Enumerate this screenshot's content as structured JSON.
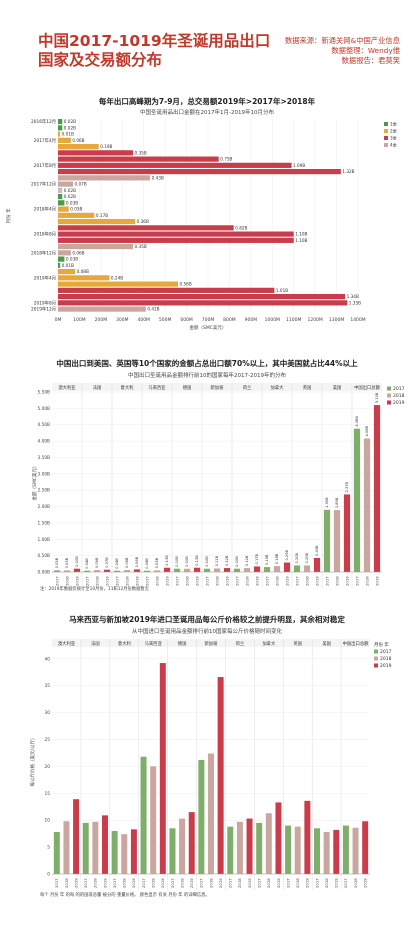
{
  "page": {
    "title": "中国2017-1019年圣诞用品出口国家及交易额分布",
    "meta": [
      "数据来源：新通关网&中国产业信息",
      "数据整理：Wendy维",
      "数据报告：君莫笑"
    ]
  },
  "colors": {
    "y2017": "#7fae6a",
    "y2018": "#c9a79f",
    "y2019": "#c93c4c",
    "aug": "#e6a83a",
    "jan": "#4a9a4a",
    "dec": "#c0c0c0",
    "title": "#c0392b"
  },
  "chart_data": [
    {
      "type": "bar",
      "orientation": "horizontal",
      "title": "每年出口高峰期为7-9月，总交易额2019年>2017年>2018年",
      "subtitle": "中国圣诞用品出口金额在2017年1月-2019年10月分布",
      "xlabel": "金额（SMC美元）",
      "ylabel": "月份 年",
      "xlim": [
        0,
        1400
      ],
      "xticks": [
        "0M",
        "100M",
        "200M",
        "300M",
        "400M",
        "500M",
        "600M",
        "700M",
        "800M",
        "900M",
        "1000M",
        "1100M",
        "1200M",
        "1300M",
        "1400M"
      ],
      "legend": [
        "1季",
        "2季",
        "3季",
        "4季"
      ],
      "legend_position": "top-right",
      "categories": [
        "2016年12月",
        "2017年4月",
        "2017年8月",
        "2017年12月",
        "2018年4月",
        "2018年8月",
        "2018年12月",
        "2019年4月",
        "2019年8月",
        "2019年12月"
      ],
      "bars": [
        {
          "label": "0.02B",
          "value": 20,
          "color": "jan"
        },
        {
          "label": "0.02B",
          "value": 20,
          "color": "jan"
        },
        {
          "label": "0.01B",
          "value": 10,
          "color": "aug"
        },
        {
          "label": "0.06B",
          "value": 60,
          "color": "aug"
        },
        {
          "label": "0.19B",
          "value": 190,
          "color": "aug"
        },
        {
          "label": "0.35B",
          "value": 350,
          "color": "y2019"
        },
        {
          "label": "0.75B",
          "value": 750,
          "color": "y2019"
        },
        {
          "label": "1.09B",
          "value": 1090,
          "color": "y2019"
        },
        {
          "label": "1.32B",
          "value": 1320,
          "color": "y2019"
        },
        {
          "label": "0.43B",
          "value": 430,
          "color": "y2018"
        },
        {
          "label": "0.07B",
          "value": 70,
          "color": "y2018"
        },
        {
          "label": "0.02B",
          "value": 20,
          "color": "dec"
        },
        {
          "label": "0.02B",
          "value": 20,
          "color": "jan"
        },
        {
          "label": "0.03B",
          "value": 30,
          "color": "jan"
        },
        {
          "label": "0.05B",
          "value": 50,
          "color": "aug"
        },
        {
          "label": "0.17B",
          "value": 170,
          "color": "aug"
        },
        {
          "label": "0.36B",
          "value": 360,
          "color": "aug"
        },
        {
          "label": "0.82B",
          "value": 820,
          "color": "y2019"
        },
        {
          "label": "1.10B",
          "value": 1100,
          "color": "y2019"
        },
        {
          "label": "1.10B",
          "value": 1100,
          "color": "y2019"
        },
        {
          "label": "0.35B",
          "value": 350,
          "color": "y2018"
        },
        {
          "label": "0.06B",
          "value": 60,
          "color": "y2018"
        },
        {
          "label": "0.03B",
          "value": 30,
          "color": "jan"
        },
        {
          "label": "0.01B",
          "value": 10,
          "color": "jan"
        },
        {
          "label": "0.08B",
          "value": 80,
          "color": "aug"
        },
        {
          "label": "0.24B",
          "value": 240,
          "color": "aug"
        },
        {
          "label": "0.56B",
          "value": 560,
          "color": "aug"
        },
        {
          "label": "1.01B",
          "value": 1010,
          "color": "y2019"
        },
        {
          "label": "1.34B",
          "value": 1340,
          "color": "y2019"
        },
        {
          "label": "1.35B",
          "value": 1350,
          "color": "y2019"
        },
        {
          "label": "0.41B",
          "value": 410,
          "color": "y2018"
        }
      ]
    },
    {
      "type": "bar",
      "title": "中国出口到美国、英国等10个国家的金额占总出口额70%以上，其中美国就占比44%以上",
      "subtitle": "中国出口圣诞用品金额排行前10的国家每年2017-2019年的分布",
      "ylabel": "金额（SMC美元）",
      "ylim": [
        0,
        5.5
      ],
      "yticks": [
        "0.00B",
        "0.50B",
        "1.00B",
        "1.50B",
        "2.00B",
        "2.50B",
        "3.00B",
        "3.50B",
        "4.00B",
        "4.50B",
        "5.00B",
        "5.50B"
      ],
      "countries": [
        "澳大利亚",
        "法国",
        "意大利",
        "马来西亚",
        "德国",
        "新加坡",
        "荷兰",
        "加拿大",
        "英国",
        "美国",
        "中国出口总额"
      ],
      "years": [
        "2017",
        "2018",
        "2019"
      ],
      "legend": [
        "2017",
        "2018",
        "2019"
      ],
      "legend_position": "right",
      "series": [
        {
          "name": "2017",
          "values": [
            0.05,
            0.04,
            0.04,
            0.04,
            0.1,
            0.1,
            0.1,
            0.15,
            0.2,
            1.9,
            4.38
          ]
        },
        {
          "name": "2018",
          "values": [
            0.05,
            0.06,
            0.06,
            0.05,
            0.1,
            0.11,
            0.12,
            0.18,
            0.2,
            1.89,
            4.08
          ]
        },
        {
          "name": "2019",
          "values": [
            0.1,
            0.07,
            0.08,
            0.13,
            0.13,
            0.12,
            0.17,
            0.29,
            0.43,
            2.37,
            5.1
          ]
        }
      ],
      "value_labels": [
        [
          "0.05B",
          "0.04B",
          "0.04B",
          "0.04B",
          "0.10B",
          "0.10B",
          "0.10B",
          "0.15B",
          "0.20B",
          "1.90B",
          "4.38B"
        ],
        [
          "0.05B",
          "0.06B",
          "0.06B",
          "0.05B",
          "0.10B",
          "0.11B",
          "0.12B",
          "0.18B",
          "0.20B",
          "1.89B",
          "4.08B"
        ],
        [
          "0.10B",
          "0.07B",
          "0.08B",
          "0.13B",
          "0.13B",
          "0.12B",
          "0.17B",
          "0.29B",
          "0.43B",
          "2.37B",
          "5.10B"
        ]
      ],
      "note": "注：2019年数据仅统计至10月份，11和12月份数据暂无"
    },
    {
      "type": "bar",
      "title": "马来西亚与新加坡2019年进口圣诞用品每公斤价格较之前提升明显，其余相对稳定",
      "subtitle": "从中国进口圣诞用品金额排行前10国家每公斤价格随时间变化",
      "ylabel": "每公斤价格（美元/公斤）",
      "ylim": [
        0,
        42
      ],
      "yticks": [
        "0",
        "5",
        "10",
        "15",
        "20",
        "25",
        "30",
        "35",
        "40"
      ],
      "countries": [
        "澳大利亚",
        "法国",
        "意大利",
        "马来西亚",
        "德国",
        "新加坡",
        "荷兰",
        "加拿大",
        "英国",
        "美国",
        "中国出口总额"
      ],
      "years": [
        "2017",
        "2018",
        "2019"
      ],
      "legend_title": "月份 年",
      "legend": [
        "2017",
        "2018",
        "2019"
      ],
      "legend_position": "right",
      "series": [
        {
          "name": "2017",
          "values": [
            7.8,
            9.5,
            8.0,
            21.8,
            8.5,
            21.2,
            8.8,
            9.5,
            9.0,
            8.5,
            9.0
          ]
        },
        {
          "name": "2018",
          "values": [
            9.8,
            9.7,
            7.4,
            20.0,
            10.3,
            22.4,
            9.7,
            11.3,
            8.8,
            7.8,
            8.6
          ]
        },
        {
          "name": "2019",
          "values": [
            13.9,
            10.9,
            8.3,
            39.2,
            11.5,
            36.6,
            10.3,
            13.3,
            13.6,
            8.2,
            9.8
          ]
        }
      ],
      "note": "每个 月份 年 的每 的的国或总量 被分的 重量价格。 颜色显示 有关 月份 年 的详细信息。"
    }
  ]
}
